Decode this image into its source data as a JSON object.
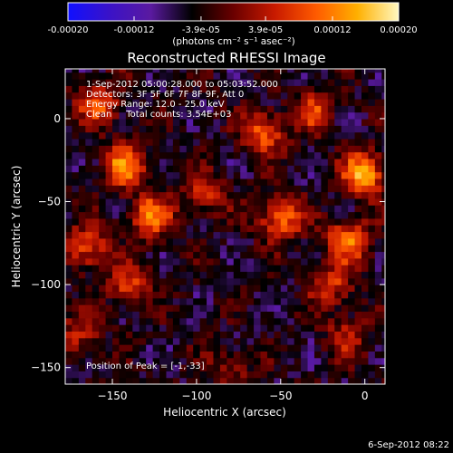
{
  "colorbar": {
    "ticks": [
      "-0.00020",
      "-0.00012",
      "-3.9e-05",
      "3.9e-05",
      "0.00012",
      "0.00020"
    ],
    "tick_values": [
      -0.0002,
      -0.00012,
      -3.9e-05,
      3.9e-05,
      0.00012,
      0.0002
    ],
    "range": [
      -0.0002,
      0.0002
    ],
    "unit_label": "(photons cm⁻² s⁻¹ asec⁻²)",
    "stops": [
      "#1010ff",
      "#3a12c8",
      "#5a1aa0",
      "#000000",
      "#6a0000",
      "#c81a00",
      "#ff5a00",
      "#ffb000",
      "#fff8c0"
    ]
  },
  "footer": {
    "timestamp": "6-Sep-2012 08:22"
  },
  "chart_data": {
    "type": "heatmap",
    "title": "Reconstructed RHESSI Image",
    "xlabel": "Heliocentric X (arcsec)",
    "ylabel": "Heliocentric Y (arcsec)",
    "xlim": [
      -178,
      12
    ],
    "ylim": [
      -160,
      30
    ],
    "xticks": [
      -150,
      -100,
      -50,
      0
    ],
    "yticks": [
      -150,
      -100,
      -50,
      0
    ],
    "annotations": [
      "1-Sep-2012 05:00:28.000 to 05:03:52.000",
      "Detectors: 3F 5F 6F 7F 8F 9F, Att 0",
      "Energy Range: 12.0 - 25.0 keV",
      "Clean     Total counts: 3.54E+03"
    ],
    "peak_label": "Position of Peak = [-1,-33]",
    "peak": [
      -1,
      -33
    ],
    "sources": [
      {
        "x": -1,
        "y": -33,
        "amp": 1.0
      },
      {
        "x": -143,
        "y": -28,
        "amp": 0.85
      },
      {
        "x": -127,
        "y": -58,
        "amp": 0.8
      },
      {
        "x": -158,
        "y": 10,
        "amp": 0.7
      },
      {
        "x": -50,
        "y": -60,
        "amp": 0.8
      },
      {
        "x": -60,
        "y": -8,
        "amp": 0.75
      },
      {
        "x": -10,
        "y": -73,
        "amp": 0.8
      },
      {
        "x": -165,
        "y": -78,
        "amp": 0.65
      },
      {
        "x": -140,
        "y": -100,
        "amp": 0.6
      },
      {
        "x": -30,
        "y": 5,
        "amp": 0.55
      },
      {
        "x": -95,
        "y": -45,
        "amp": 0.5
      },
      {
        "x": -20,
        "y": -100,
        "amp": 0.55
      },
      {
        "x": -10,
        "y": -130,
        "amp": 0.45
      },
      {
        "x": -80,
        "y": -150,
        "amp": 0.35
      },
      {
        "x": -170,
        "y": -130,
        "amp": 0.45
      }
    ]
  }
}
